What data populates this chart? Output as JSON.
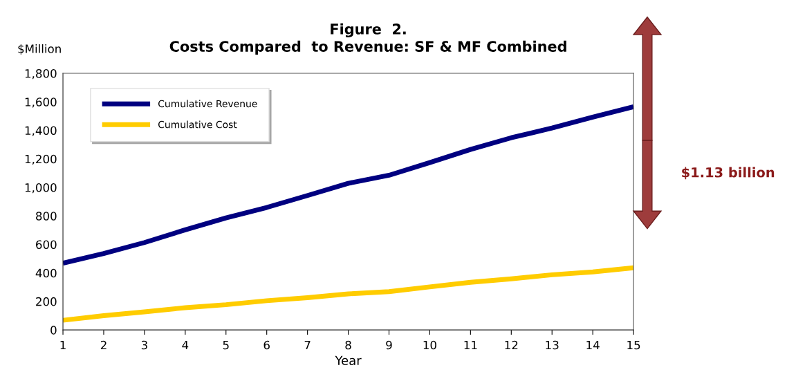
{
  "chart_data": {
    "type": "line",
    "title": "Figure  2.\nCosts Compared  to Revenue: SF & MF Combined",
    "xlabel": "Year",
    "ylabel": "$Million",
    "x": [
      1,
      2,
      3,
      4,
      5,
      6,
      7,
      8,
      9,
      10,
      11,
      12,
      13,
      14,
      15
    ],
    "series": [
      {
        "name": "Cumulative Revenue",
        "color": "#000080",
        "values": [
          468,
          536,
          613,
          702,
          786,
          859,
          943,
          1028,
          1085,
          1174,
          1266,
          1348,
          1416,
          1493,
          1566
        ]
      },
      {
        "name": "Cumulative Cost",
        "color": "#ffcc00",
        "values": [
          68,
          100,
          127,
          156,
          177,
          205,
          226,
          253,
          269,
          302,
          334,
          358,
          387,
          407,
          436
        ]
      }
    ],
    "xlim": [
      1,
      15
    ],
    "xticks": [
      1,
      2,
      3,
      4,
      5,
      6,
      7,
      8,
      9,
      10,
      11,
      12,
      13,
      14,
      15
    ],
    "ylim": [
      0,
      1800
    ],
    "yticks": [
      0,
      {
        "value": 200,
        "label": "200"
      },
      {
        "value": 400,
        "label": "400"
      },
      {
        "value": 600,
        "label": "600"
      },
      {
        "value": 800,
        "label": "800"
      },
      {
        "value": 1000,
        "label": "1,000"
      },
      {
        "value": 1200,
        "label": "1,200"
      },
      {
        "value": 1400,
        "label": "1,400"
      },
      {
        "value": 1600,
        "label": "1,600"
      },
      {
        "value": 1800,
        "label": "1,800"
      }
    ],
    "annotations": [
      "$1.13 billion"
    ],
    "grid": false,
    "legend": "top left",
    "marker": "none",
    "line_style": "solid"
  }
}
